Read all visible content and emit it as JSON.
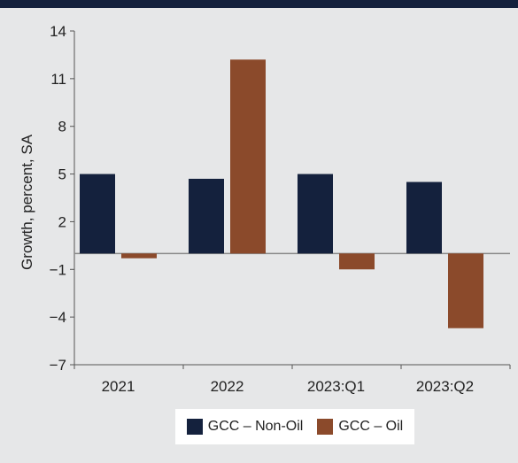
{
  "chart_data": {
    "type": "bar",
    "categories": [
      "2021",
      "2022",
      "2023:Q1",
      "2023:Q2"
    ],
    "series": [
      {
        "name": "GCC – Non-Oil",
        "values": [
          5.0,
          4.7,
          5.0,
          4.5
        ],
        "color": "#14213d"
      },
      {
        "name": "GCC – Oil",
        "values": [
          -0.3,
          12.2,
          -1.0,
          -4.7
        ],
        "color": "#8b4a2b"
      }
    ],
    "ylabel": "Growth, percent, SA",
    "xlabel": "",
    "ylim": [
      -7,
      14
    ],
    "yticks": [
      14,
      11,
      8,
      5,
      2,
      -1,
      -4,
      -7
    ],
    "grid": false,
    "legend_position": "bottom"
  }
}
